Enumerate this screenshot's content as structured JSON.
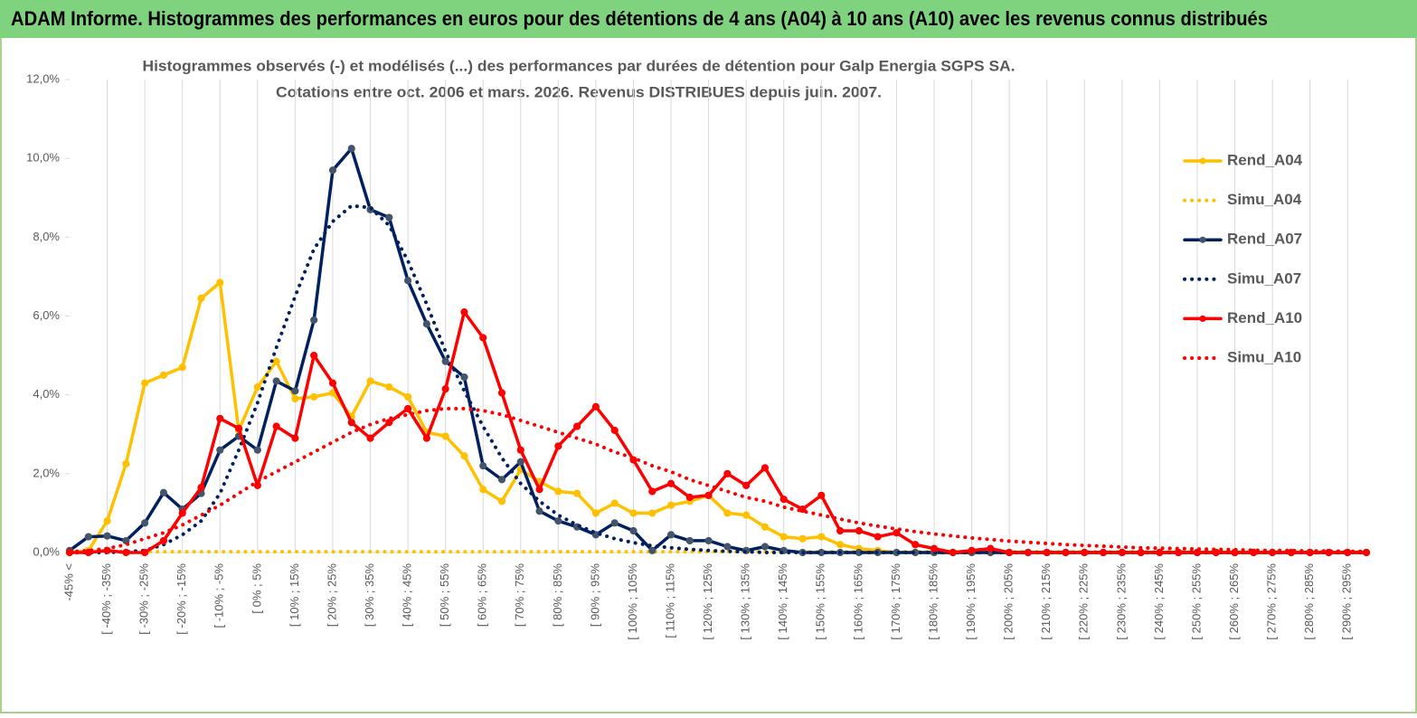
{
  "header": {
    "title": "ADAM Informe. Histogrammes des performances en euros pour des détentions de 4 ans (A04) à 10 ans (A10) avec les revenus connus distribués"
  },
  "chart_data": {
    "type": "line",
    "title": "Histogrammes observés (-) et modélisés (...) des performances par durées de détention pour Galp Energia SGPS SA.",
    "subtitle": "Cotations entre oct. 2006 et mars. 2026. Revenus DISTRIBUES depuis juin. 2007.",
    "categories": [
      "-45% <",
      null,
      "[ -40% ; -35%",
      null,
      "[ -30% ; -25%",
      null,
      "[ -20% ; -15%",
      null,
      "[ -10% ; -5%",
      null,
      "[ 0% ; 5%",
      null,
      "[ 10% ; 15%",
      null,
      "[ 20% ; 25%",
      null,
      "[ 30% ; 35%",
      null,
      "[ 40% ; 45%",
      null,
      "[ 50% ; 55%",
      null,
      "[ 60% ; 65%",
      null,
      "[ 70% ; 75%",
      null,
      "[ 80% ; 85%",
      null,
      "[ 90% ; 95%",
      null,
      "[ 100% ; 105%",
      null,
      "[ 110% ; 115%",
      null,
      "[ 120% ; 125%",
      null,
      "[ 130% ; 135%",
      null,
      "[ 140% ; 145%",
      null,
      "[ 150% ; 155%",
      null,
      "[ 160% ; 165%",
      null,
      "[ 170% ; 175%",
      null,
      "[ 180% ; 185%",
      null,
      "[ 190% ; 195%",
      null,
      "[ 200% ; 205%",
      null,
      "[ 210% ; 215%",
      null,
      "[ 220% ; 225%",
      null,
      "[ 230% ; 235%",
      null,
      "[ 240% ; 245%",
      null,
      "[ 250% ; 255%",
      null,
      "[ 260% ; 265%",
      null,
      "[ 270% ; 275%",
      null,
      "[ 280% ; 285%",
      null,
      "[ 290% ; 295%",
      null
    ],
    "series": [
      {
        "name": "Rend_A04",
        "color": "#ffc000",
        "line_style": "solid",
        "markers": true,
        "values": [
          0,
          0.05,
          0.8,
          2.25,
          4.3,
          4.5,
          4.7,
          6.45,
          6.85,
          3.1,
          4.2,
          4.85,
          3.9,
          3.95,
          4.05,
          3.45,
          4.35,
          4.2,
          3.95,
          3.05,
          2.95,
          2.45,
          1.6,
          1.3,
          2.1,
          1.8,
          1.55,
          1.5,
          1.0,
          1.25,
          1.0,
          1.0,
          1.2,
          1.3,
          1.45,
          1.0,
          0.95,
          0.65,
          0.4,
          0.35,
          0.4,
          0.2,
          0.1,
          0.05,
          0,
          0,
          0,
          0,
          0,
          0,
          0,
          0,
          0,
          0,
          0,
          0,
          0,
          0,
          0,
          0,
          0,
          0,
          0,
          0,
          0,
          0,
          0,
          0,
          0,
          0
        ]
      },
      {
        "name": "Simu_A04",
        "color": "#ffc000",
        "line_style": "dotted",
        "markers": false,
        "values": [
          0.02,
          0.02,
          0.02,
          0.02,
          0.02,
          0.02,
          0.02,
          0.02,
          0.02,
          0.02,
          0.02,
          0.02,
          0.02,
          0.02,
          0.02,
          0.02,
          0.02,
          0.02,
          0.02,
          0.02,
          0.02,
          0.02,
          0.02,
          0.02,
          0.02,
          0.02,
          0.02,
          0.02,
          0.02,
          0.02,
          0.02,
          0.02,
          0.02,
          0.02,
          0.02,
          0.02,
          0.02,
          0.02,
          0.02,
          0.02,
          0.02,
          0.02,
          0.02,
          0.02,
          0.02,
          0.02,
          0.02,
          0.02,
          0.02,
          0.02,
          0.02,
          0.02,
          0.02,
          0.02,
          0.02,
          0.02,
          0.02,
          0.02,
          0.02,
          0.02,
          0.02,
          0.02,
          0.02,
          0.02,
          0.02,
          0.02,
          0.02,
          0.02,
          0.02,
          0.02
        ]
      },
      {
        "name": "Rend_A07",
        "color": "#002060",
        "line_style": "solid",
        "markers": true,
        "marker_color": "#44546a",
        "values": [
          0.05,
          0.4,
          0.42,
          0.3,
          0.75,
          1.52,
          1.1,
          1.5,
          2.6,
          2.95,
          2.6,
          4.35,
          4.1,
          5.9,
          9.7,
          10.25,
          8.7,
          8.5,
          6.9,
          5.8,
          4.85,
          4.45,
          2.2,
          1.85,
          2.3,
          1.05,
          0.8,
          0.65,
          0.45,
          0.75,
          0.55,
          0.05,
          0.45,
          0.3,
          0.3,
          0.15,
          0.05,
          0.15,
          0.05,
          0,
          0,
          0,
          0,
          0,
          0,
          0,
          0,
          0,
          0,
          0,
          0,
          0,
          0,
          0,
          0,
          0,
          0,
          0,
          0,
          0,
          0,
          0,
          0,
          0,
          0,
          0,
          0,
          0,
          0,
          0
        ]
      },
      {
        "name": "Simu_A07",
        "color": "#002060",
        "line_style": "dotted",
        "markers": false,
        "values": [
          0,
          0,
          0,
          0.02,
          0.05,
          0.2,
          0.45,
          0.8,
          1.5,
          2.6,
          3.8,
          5.2,
          6.5,
          7.7,
          8.4,
          8.8,
          8.75,
          8.3,
          7.4,
          6.3,
          5.1,
          4.1,
          3.2,
          2.4,
          1.75,
          1.3,
          0.95,
          0.7,
          0.5,
          0.35,
          0.25,
          0.17,
          0.12,
          0.08,
          0.05,
          0.03,
          0.02,
          0,
          0,
          0,
          0,
          0,
          0,
          0,
          0,
          0,
          0,
          0,
          0,
          0,
          0,
          0,
          0,
          0,
          0,
          0,
          0,
          0,
          0,
          0,
          0,
          0,
          0,
          0,
          0,
          0,
          0,
          0,
          0,
          0
        ]
      },
      {
        "name": "Rend_A10",
        "color": "#ff0000",
        "line_style": "solid",
        "markers": true,
        "values": [
          0,
          0,
          0.05,
          0,
          0,
          0.3,
          1.0,
          1.65,
          3.4,
          3.15,
          1.7,
          3.2,
          2.9,
          5.0,
          4.3,
          3.3,
          2.9,
          3.3,
          3.65,
          2.9,
          4.15,
          6.1,
          5.45,
          4.05,
          2.6,
          1.6,
          2.7,
          3.2,
          3.7,
          3.1,
          2.35,
          1.55,
          1.75,
          1.4,
          1.45,
          2.0,
          1.7,
          2.15,
          1.35,
          1.1,
          1.45,
          0.55,
          0.55,
          0.4,
          0.5,
          0.2,
          0.1,
          0,
          0.05,
          0.1,
          0,
          0,
          0,
          0,
          0,
          0,
          0,
          0,
          0,
          0,
          0,
          0,
          0,
          0,
          0,
          0,
          0,
          0,
          0,
          0
        ]
      },
      {
        "name": "Simu_A10",
        "color": "#ff0000",
        "line_style": "dotted",
        "markers": false,
        "values": [
          0.02,
          0.05,
          0.1,
          0.2,
          0.35,
          0.5,
          0.7,
          0.95,
          1.2,
          1.5,
          1.8,
          2.05,
          2.3,
          2.55,
          2.8,
          3.05,
          3.25,
          3.4,
          3.5,
          3.6,
          3.65,
          3.65,
          3.6,
          3.5,
          3.35,
          3.2,
          3.05,
          2.9,
          2.75,
          2.55,
          2.4,
          2.2,
          2.05,
          1.85,
          1.7,
          1.55,
          1.4,
          1.3,
          1.15,
          1.05,
          0.95,
          0.85,
          0.75,
          0.67,
          0.6,
          0.53,
          0.47,
          0.42,
          0.37,
          0.33,
          0.29,
          0.26,
          0.23,
          0.2,
          0.18,
          0.16,
          0.14,
          0.12,
          0.11,
          0.1,
          0.09,
          0.08,
          0.07,
          0.06,
          0.05,
          0.05,
          0.04,
          0.04,
          0.03,
          0.03
        ]
      }
    ],
    "ylim": [
      0,
      12
    ],
    "yticks": [
      {
        "value": 0,
        "label": "0,0%"
      },
      {
        "value": 2,
        "label": "2,0%"
      },
      {
        "value": 4,
        "label": "4,0%"
      },
      {
        "value": 6,
        "label": "6,0%"
      },
      {
        "value": 8,
        "label": "8,0%"
      },
      {
        "value": 10,
        "label": "10,0%"
      },
      {
        "value": 12,
        "label": "12,0%"
      }
    ],
    "grid": true,
    "legend": "right"
  }
}
